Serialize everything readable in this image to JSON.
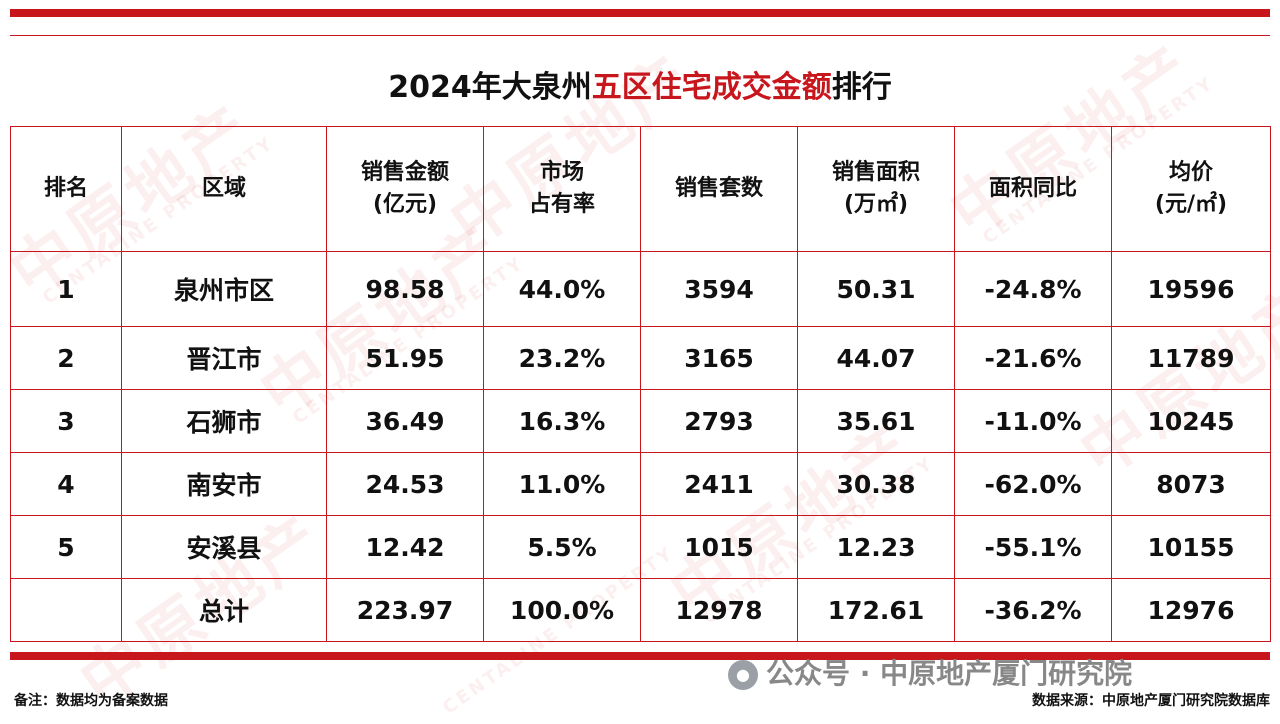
{
  "title": {
    "prefix": "2024年大泉州",
    "highlight": "五区住宅成交金额",
    "suffix": "排行"
  },
  "table": {
    "headers": [
      {
        "line1": "排名",
        "line2": ""
      },
      {
        "line1": "区域",
        "line2": ""
      },
      {
        "line1": "销售金额",
        "line2": "(亿元)"
      },
      {
        "line1": "市场",
        "line2": "占有率"
      },
      {
        "line1": "销售套数",
        "line2": ""
      },
      {
        "line1": "销售面积",
        "line2": "(万㎡)"
      },
      {
        "line1": "面积同比",
        "line2": ""
      },
      {
        "line1": "均价",
        "line2": "(元/㎡)"
      }
    ],
    "rows": [
      [
        "1",
        "泉州市区",
        "98.58",
        "44.0%",
        "3594",
        "50.31",
        "-24.8%",
        "19596"
      ],
      [
        "2",
        "晋江市",
        "51.95",
        "23.2%",
        "3165",
        "44.07",
        "-21.6%",
        "11789"
      ],
      [
        "3",
        "石狮市",
        "36.49",
        "16.3%",
        "2793",
        "35.61",
        "-11.0%",
        "10245"
      ],
      [
        "4",
        "南安市",
        "24.53",
        "11.0%",
        "2411",
        "30.38",
        "-62.0%",
        "8073"
      ],
      [
        "5",
        "安溪县",
        "12.42",
        "5.5%",
        "1015",
        "12.23",
        "-55.1%",
        "10155"
      ],
      [
        "",
        "总计",
        "223.97",
        "100.0%",
        "12978",
        "172.61",
        "-36.2%",
        "12976"
      ]
    ]
  },
  "watermark": {
    "brand": "中原地产",
    "english": "CENTALINE PROPERTY"
  },
  "footer": {
    "wechat": "公众号 · 中原地产厦门研究院",
    "note": "备注：数据均为备案数据",
    "source": "数据来源：中原地产厦门研究院数据库"
  },
  "colors": {
    "accent": "#c8161d"
  }
}
